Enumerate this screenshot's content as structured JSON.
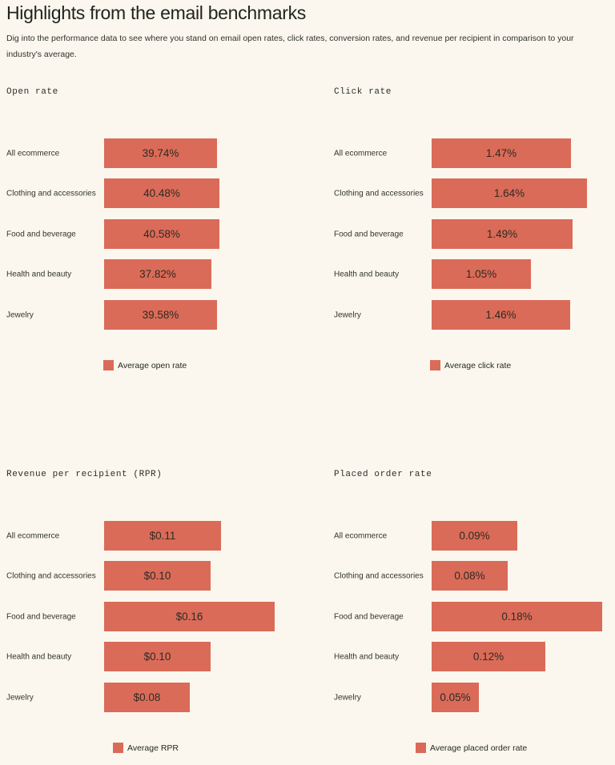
{
  "page": {
    "title": "Highlights from the email benchmarks",
    "subtitle": "Dig into the performance data to see where you stand on email open rates, click rates, conversion rates, and revenue per recipient in comparison to your industry's average."
  },
  "colors": {
    "background": "#fbf7ee",
    "bar": "#da6b58",
    "title_text": "#21231e",
    "body_text": "#2f322b"
  },
  "chart_data": [
    {
      "type": "bar",
      "orientation": "horizontal",
      "title": "Open rate",
      "categories": [
        "All ecommerce",
        "Clothing and accessories",
        "Food and beverage",
        "Health and beauty",
        "Jewelry"
      ],
      "values": [
        39.74,
        40.48,
        40.58,
        37.82,
        39.58
      ],
      "value_labels": [
        "39.74%",
        "40.48%",
        "40.58%",
        "37.82%",
        "39.58%"
      ],
      "axis_max": 60,
      "legend": "Average open rate",
      "legend_position": "bottom-center",
      "grid": false
    },
    {
      "type": "bar",
      "orientation": "horizontal",
      "title": "Click rate",
      "categories": [
        "All ecommerce",
        "Clothing and accessories",
        "Food and beverage",
        "Health and beauty",
        "Jewelry"
      ],
      "values": [
        1.47,
        1.64,
        1.49,
        1.05,
        1.46
      ],
      "value_labels": [
        "1.47%",
        "1.64%",
        "1.49%",
        "1.05%",
        "1.46%"
      ],
      "axis_max": 1.8,
      "legend": "Average click rate",
      "legend_position": "bottom-center",
      "grid": false
    },
    {
      "type": "bar",
      "orientation": "horizontal",
      "title": "Revenue per recipient (RPR)",
      "categories": [
        "All ecommerce",
        "Clothing and accessories",
        "Food and beverage",
        "Health and beauty",
        "Jewelry"
      ],
      "values": [
        0.11,
        0.1,
        0.16,
        0.1,
        0.08
      ],
      "value_labels": [
        "$0.11",
        "$0.10",
        "$0.16",
        "$0.10",
        "$0.08"
      ],
      "axis_max": 0.16,
      "legend": "Average RPR",
      "legend_position": "bottom-center",
      "grid": false
    },
    {
      "type": "bar",
      "orientation": "horizontal",
      "title": "Placed order rate",
      "categories": [
        "All ecommerce",
        "Clothing and accessories",
        "Food and beverage",
        "Health and beauty",
        "Jewelry"
      ],
      "values": [
        0.09,
        0.08,
        0.18,
        0.12,
        0.05
      ],
      "value_labels": [
        "0.09%",
        "0.08%",
        "0.18%",
        "0.12%",
        "0.05%"
      ],
      "axis_max": 0.18,
      "legend": "Average placed order rate",
      "legend_position": "bottom-center",
      "grid": false
    }
  ]
}
